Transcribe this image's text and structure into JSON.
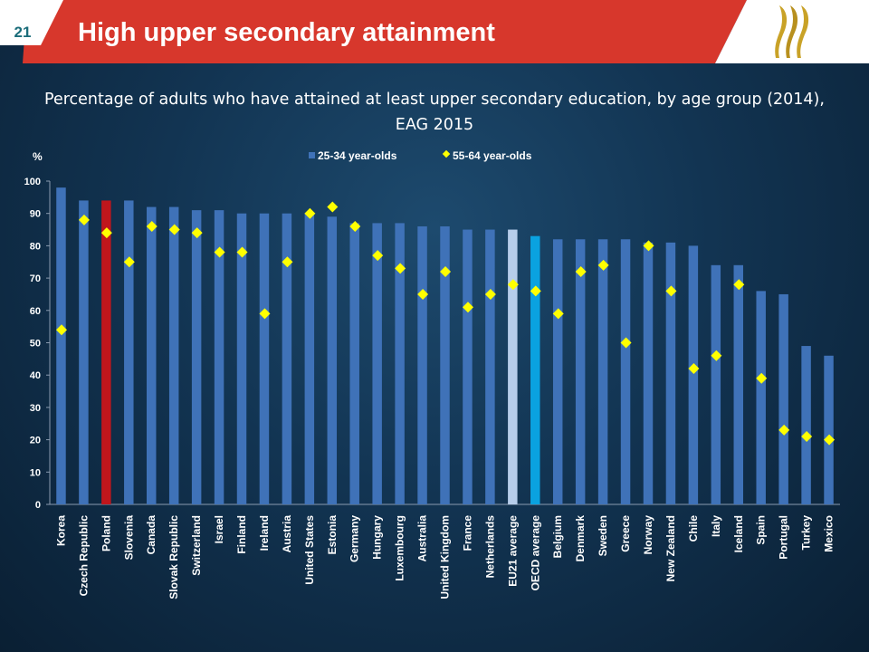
{
  "slide": {
    "number": "21",
    "title": "High upper secondary attainment",
    "subtitle": "Percentage of adults who have attained at least upper secondary education, by age group (2014),  EAG 2015"
  },
  "colors": {
    "header_red": "#d7372c",
    "bar_default": "#3f72b8",
    "bar_poland": "#c0161c",
    "bar_eu21": "#b6cdea",
    "bar_oecd": "#0aa2e0",
    "marker": "#ffff00",
    "logo_gold": "#c9a227"
  },
  "logo": {
    "icon": "oecd-logo-icon"
  },
  "chart_data": {
    "type": "bar",
    "ylabel": "%",
    "ylim": [
      0,
      100
    ],
    "yticks": [
      0,
      10,
      20,
      30,
      40,
      50,
      60,
      70,
      80,
      90,
      100
    ],
    "grid": false,
    "legend_position": "top-center",
    "categories": [
      "Korea",
      "Czech Republic",
      "Poland",
      "Slovenia",
      "Canada",
      "Slovak Republic",
      "Switzerland",
      "Israel",
      "Finland",
      "Ireland",
      "Austria",
      "United States",
      "Estonia",
      "Germany",
      "Hungary",
      "Luxembourg",
      "Australia",
      "United Kingdom",
      "France",
      "Netherlands",
      "EU21 average",
      "OECD average",
      "Belgium",
      "Denmark",
      "Sweden",
      "Greece",
      "Norway",
      "New Zealand",
      "Chile",
      "Italy",
      "Iceland",
      "Spain",
      "Portugal",
      "Turkey",
      "Mexico"
    ],
    "highlight": {
      "Poland": "bar_poland",
      "EU21 average": "bar_eu21",
      "OECD average": "bar_oecd"
    },
    "series": [
      {
        "name": "25-34 year-olds",
        "kind": "bar",
        "values": [
          98,
          94,
          94,
          94,
          92,
          92,
          91,
          91,
          90,
          90,
          90,
          90,
          89,
          87,
          87,
          87,
          86,
          86,
          85,
          85,
          85,
          83,
          82,
          82,
          82,
          82,
          81,
          81,
          80,
          74,
          74,
          66,
          65,
          49,
          46
        ]
      },
      {
        "name": "55-64 year-olds",
        "kind": "marker",
        "values": [
          54,
          88,
          84,
          75,
          86,
          85,
          84,
          78,
          78,
          59,
          75,
          90,
          92,
          86,
          77,
          73,
          65,
          72,
          61,
          65,
          68,
          66,
          59,
          72,
          74,
          50,
          80,
          66,
          42,
          46,
          68,
          39,
          23,
          21,
          20
        ]
      }
    ]
  }
}
